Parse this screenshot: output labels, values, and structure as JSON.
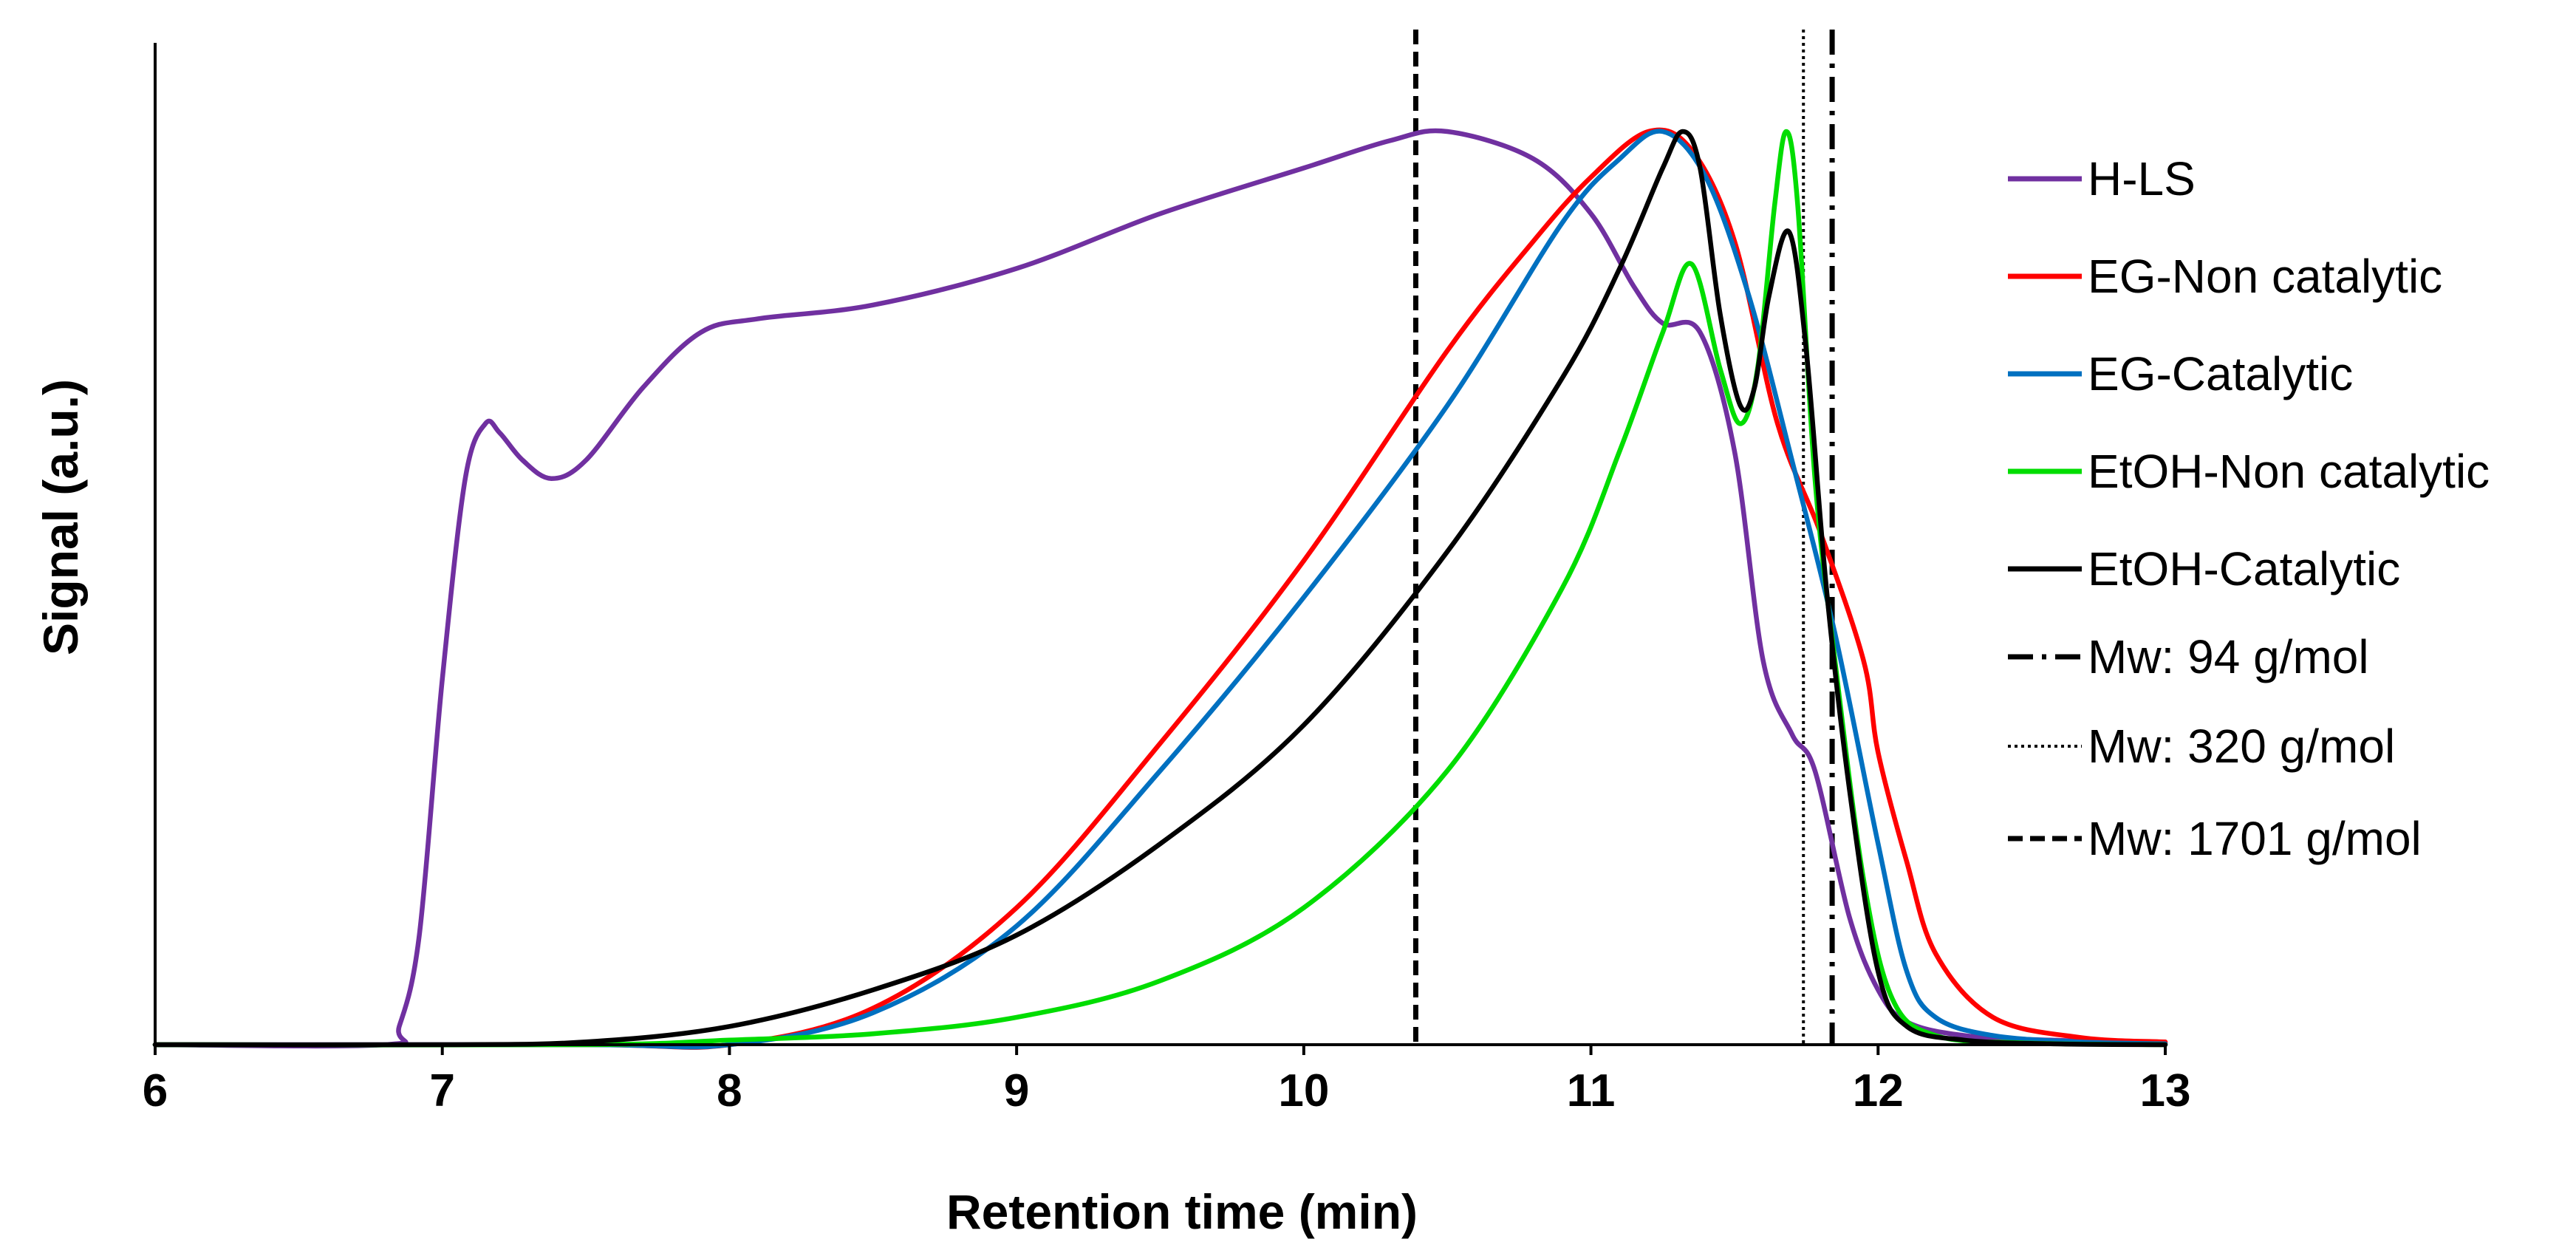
{
  "chart_data": {
    "type": "line",
    "title": "",
    "xlabel": "Retention time (min)",
    "ylabel": "Signal (a.u.)",
    "xlim": [
      6,
      13
    ],
    "ylim": [
      0,
      1
    ],
    "x_ticks": [
      "6",
      "7",
      "8",
      "9",
      "10",
      "11",
      "12",
      "13"
    ],
    "grid": false,
    "legend_position": "right",
    "series": [
      {
        "name": "H-LS",
        "color": "#7030A0",
        "x": [
          6.0,
          6.8,
          6.85,
          6.92,
          7.0,
          7.08,
          7.15,
          7.2,
          7.28,
          7.38,
          7.5,
          7.7,
          7.9,
          8.1,
          8.5,
          9.0,
          9.5,
          10.0,
          10.3,
          10.5,
          10.8,
          11.0,
          11.15,
          11.25,
          11.38,
          11.5,
          11.6,
          11.7,
          11.78,
          11.9,
          12.0,
          12.1,
          12.3,
          12.6,
          13.0
        ],
        "y": [
          0.0,
          0.0,
          0.02,
          0.12,
          0.4,
          0.62,
          0.68,
          0.67,
          0.64,
          0.62,
          0.64,
          0.72,
          0.78,
          0.795,
          0.81,
          0.85,
          0.91,
          0.96,
          0.99,
          1.0,
          0.97,
          0.91,
          0.83,
          0.79,
          0.78,
          0.65,
          0.42,
          0.34,
          0.3,
          0.14,
          0.06,
          0.025,
          0.01,
          0.005,
          0.002
        ]
      },
      {
        "name": "EG-Non catalytic",
        "color": "#FF0000",
        "x": [
          6.0,
          7.5,
          8.0,
          8.5,
          9.0,
          9.5,
          10.0,
          10.5,
          10.8,
          11.0,
          11.2,
          11.35,
          11.5,
          11.65,
          11.8,
          11.95,
          12.0,
          12.1,
          12.2,
          12.4,
          12.7,
          13.0
        ],
        "y": [
          0.0,
          0.0,
          0.0,
          0.04,
          0.15,
          0.33,
          0.53,
          0.76,
          0.88,
          0.95,
          1.0,
          0.98,
          0.88,
          0.68,
          0.56,
          0.42,
          0.32,
          0.2,
          0.1,
          0.03,
          0.008,
          0.003
        ]
      },
      {
        "name": "EG-Catalytic",
        "color": "#0070C0",
        "x": [
          6.0,
          7.5,
          8.0,
          8.5,
          9.0,
          9.5,
          10.0,
          10.5,
          10.9,
          11.1,
          11.25,
          11.4,
          11.55,
          11.7,
          11.85,
          12.0,
          12.1,
          12.2,
          12.4,
          12.7,
          13.0
        ],
        "y": [
          0.0,
          0.0,
          0.0,
          0.035,
          0.13,
          0.3,
          0.49,
          0.7,
          0.9,
          0.97,
          1.0,
          0.95,
          0.82,
          0.64,
          0.45,
          0.22,
          0.08,
          0.03,
          0.01,
          0.003,
          0.001
        ]
      },
      {
        "name": "EtOH-Non catalytic",
        "color": "#00DD00",
        "x": [
          6.0,
          7.5,
          8.0,
          8.5,
          9.0,
          9.5,
          10.0,
          10.5,
          10.9,
          11.1,
          11.25,
          11.35,
          11.45,
          11.52,
          11.58,
          11.64,
          11.68,
          11.72,
          11.78,
          11.85,
          11.95,
          12.05,
          12.2,
          12.5,
          13.0
        ],
        "y": [
          0.0,
          0.0,
          0.005,
          0.012,
          0.03,
          0.07,
          0.15,
          0.3,
          0.5,
          0.65,
          0.78,
          0.855,
          0.74,
          0.68,
          0.74,
          0.92,
          1.0,
          0.92,
          0.62,
          0.42,
          0.18,
          0.05,
          0.01,
          0.002,
          0.0
        ]
      },
      {
        "name": "EtOH-Catalytic",
        "color": "#000000",
        "x": [
          6.0,
          7.0,
          7.5,
          8.0,
          8.5,
          9.0,
          9.5,
          10.0,
          10.5,
          10.9,
          11.1,
          11.25,
          11.32,
          11.38,
          11.45,
          11.52,
          11.57,
          11.62,
          11.69,
          11.75,
          11.82,
          11.9,
          12.0,
          12.1,
          12.3,
          12.6,
          13.0
        ],
        "y": [
          0.0,
          0.0,
          0.003,
          0.02,
          0.06,
          0.12,
          0.22,
          0.35,
          0.54,
          0.73,
          0.85,
          0.96,
          1.0,
          0.96,
          0.8,
          0.7,
          0.72,
          0.82,
          0.89,
          0.76,
          0.5,
          0.28,
          0.08,
          0.02,
          0.005,
          0.001,
          0.0
        ]
      }
    ],
    "reference_lines": [
      {
        "name": "Mw: 94 g/mol",
        "x": 11.84,
        "style": "dash-dot"
      },
      {
        "name": "Mw: 320 g/mol",
        "x": 11.74,
        "style": "dotted"
      },
      {
        "name": "Mw: 1701 g/mol",
        "x": 10.39,
        "style": "dashed"
      }
    ]
  }
}
